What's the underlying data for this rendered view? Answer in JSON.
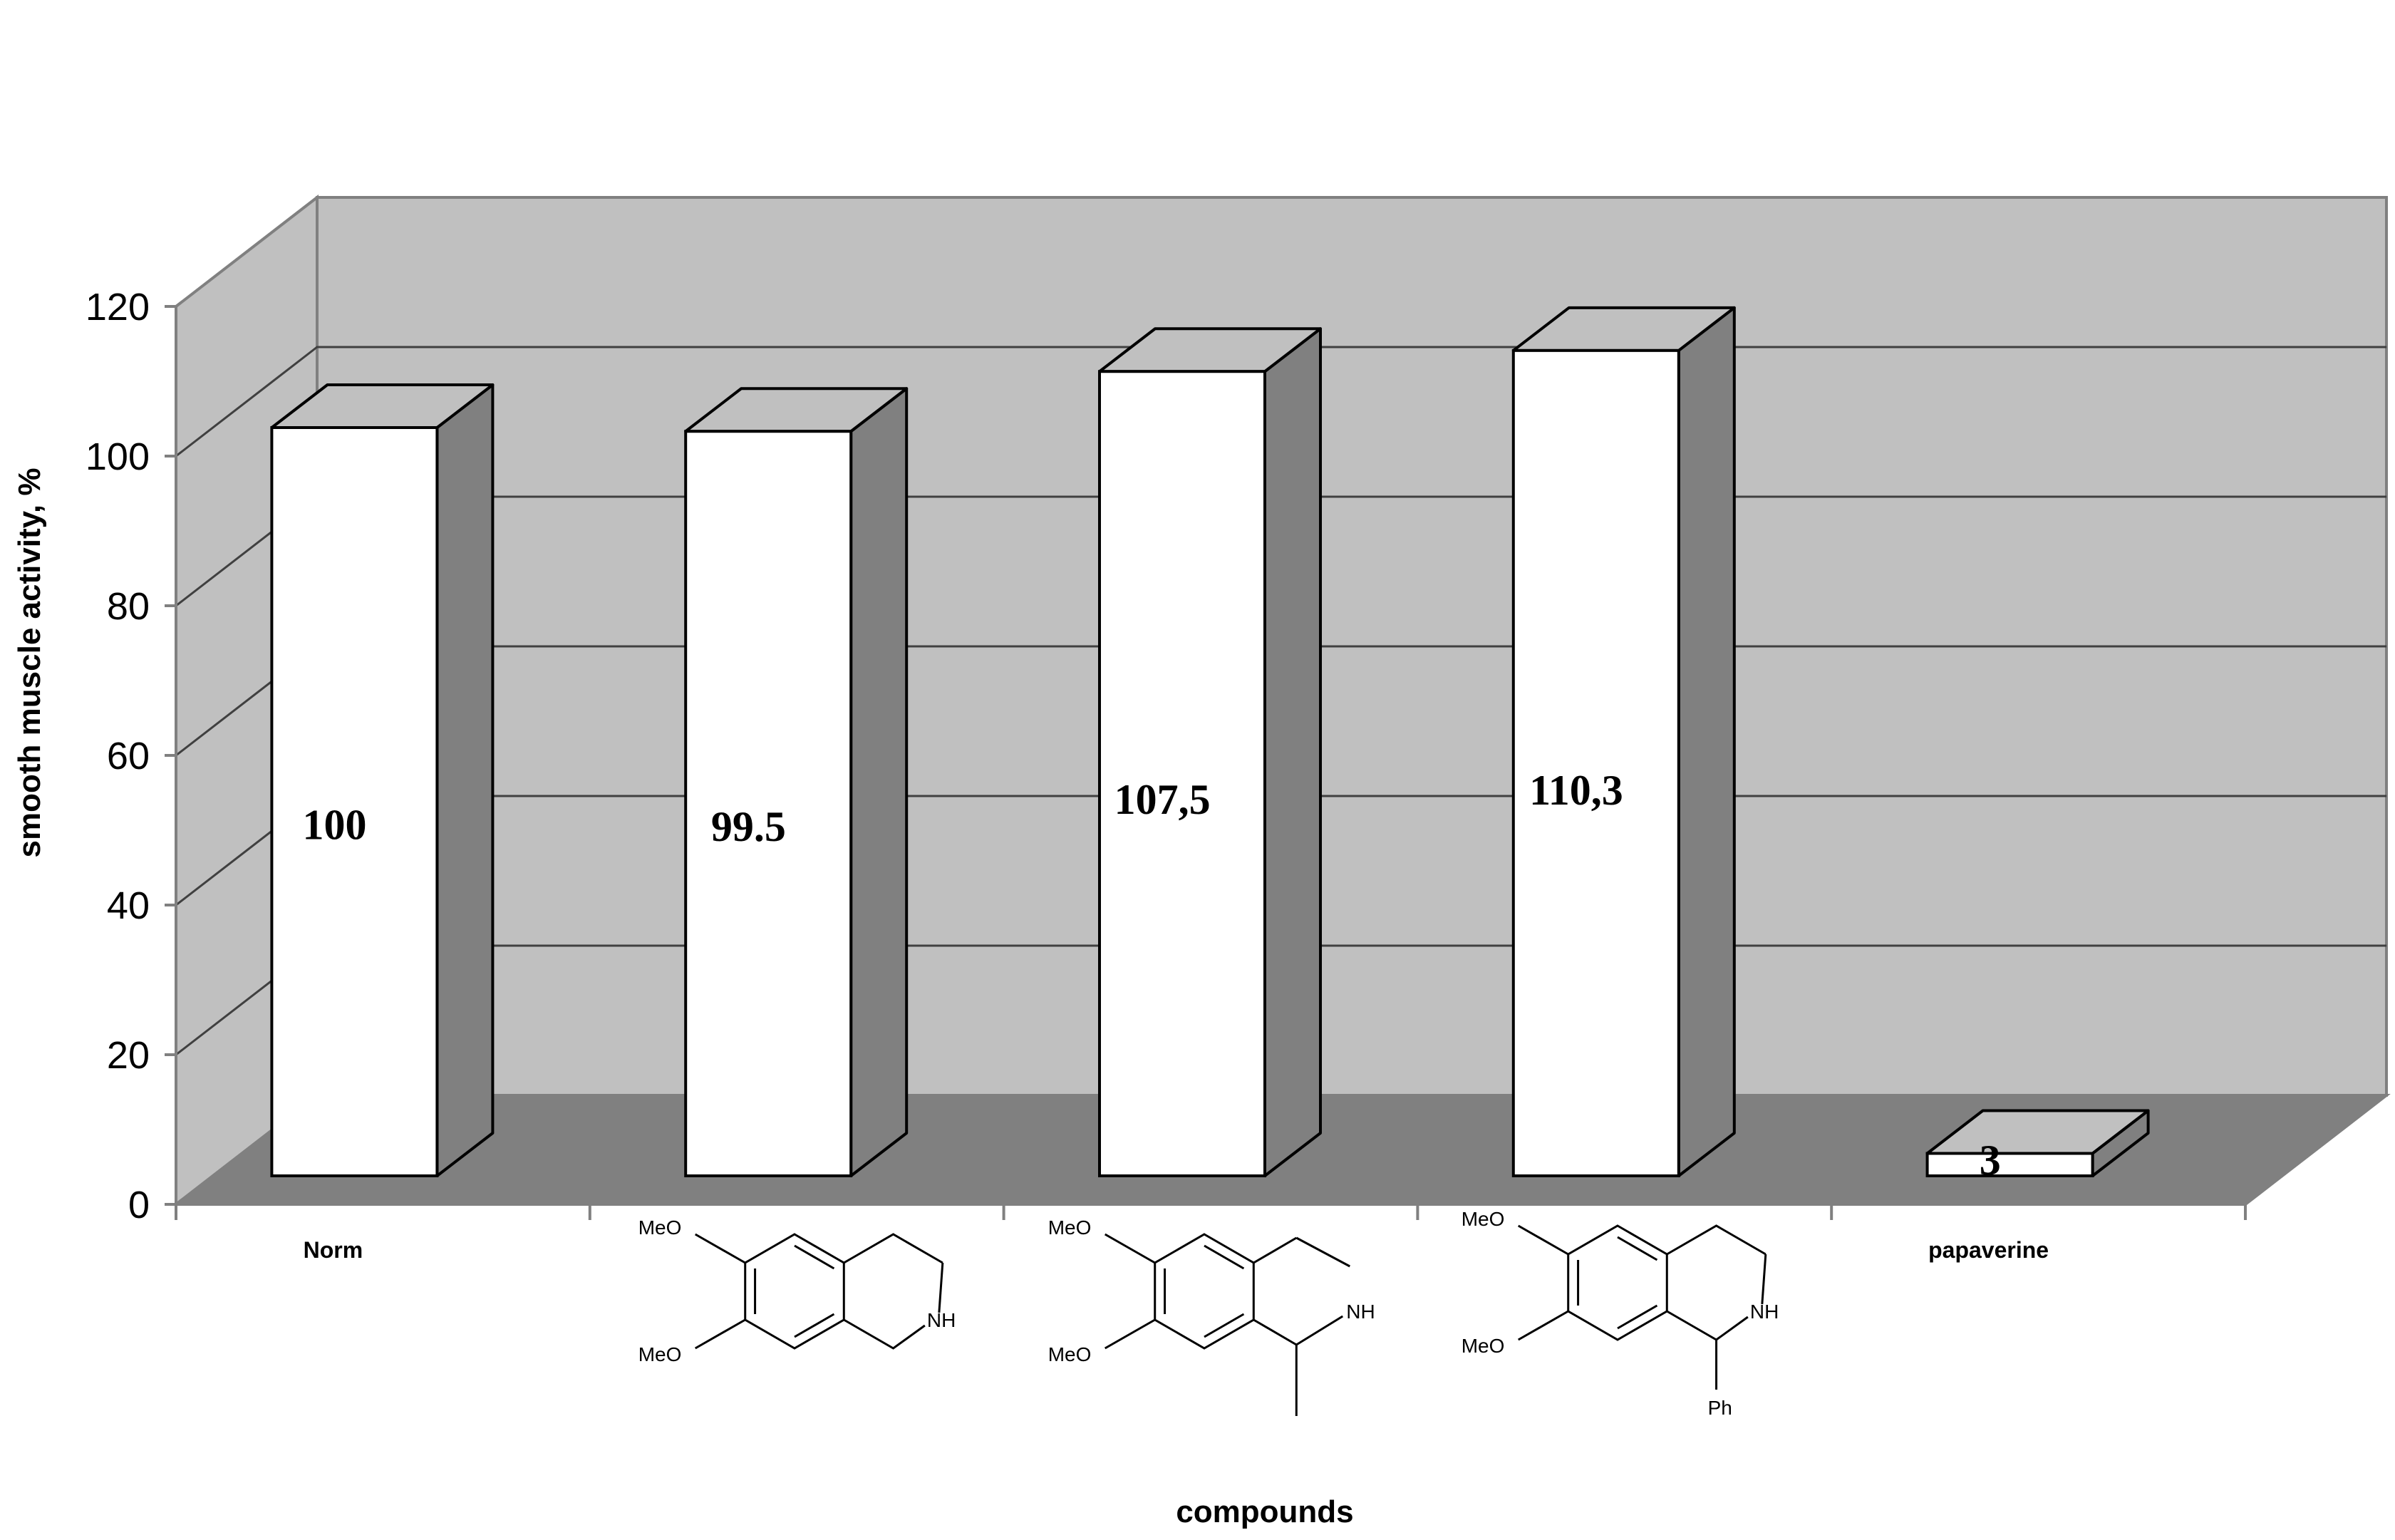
{
  "chart_data": {
    "type": "bar",
    "categories": [
      "Norm",
      "",
      "",
      "",
      "papaverine"
    ],
    "values": [
      100,
      99.5,
      107.5,
      110.3,
      3
    ],
    "data_labels": [
      "100",
      "99.5",
      "107,5",
      "110,3",
      "3"
    ],
    "xlabel": "compounds",
    "ylabel": "smooth muscle activity, %",
    "ylim": [
      0,
      120
    ],
    "yticks": [
      "0",
      "20",
      "40",
      "60",
      "80",
      "100",
      "120"
    ],
    "grid": true,
    "three_d": true,
    "structures": [
      {
        "substituents": [
          "MeO",
          "MeO",
          "NH"
        ]
      },
      {
        "substituents": [
          "MeO",
          "MeO",
          "NH"
        ]
      },
      {
        "substituents": [
          "MeO",
          "MeO",
          "NH",
          "Ph"
        ]
      }
    ],
    "colors": {
      "back_wall": "#c0c0c0",
      "floor": "#808080",
      "bar_front": "#ffffff",
      "bar_top": "#c0c0c0",
      "bar_side": "#808080",
      "edge": "#000000"
    }
  }
}
